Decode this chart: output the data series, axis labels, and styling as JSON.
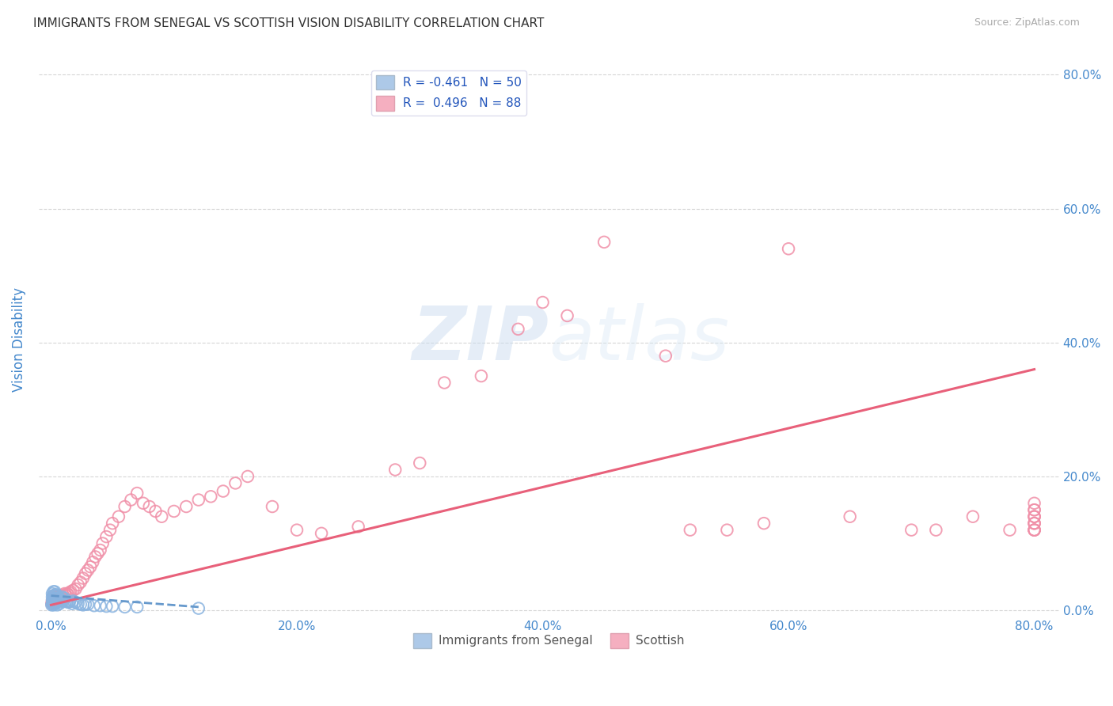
{
  "title": "IMMIGRANTS FROM SENEGAL VS SCOTTISH VISION DISABILITY CORRELATION CHART",
  "source": "Source: ZipAtlas.com",
  "ylabel": "Vision Disability",
  "x_tick_labels": [
    "0.0%",
    "20.0%",
    "40.0%",
    "60.0%",
    "80.0%"
  ],
  "x_tick_vals": [
    0.0,
    0.2,
    0.4,
    0.6,
    0.8
  ],
  "y_tick_labels": [
    "0.0%",
    "20.0%",
    "40.0%",
    "60.0%",
    "80.0%"
  ],
  "y_tick_vals": [
    0.0,
    0.2,
    0.4,
    0.6,
    0.8
  ],
  "xlim": [
    -0.01,
    0.82
  ],
  "ylim": [
    -0.01,
    0.82
  ],
  "legend_r1": "R = -0.461",
  "legend_n1": "N = 50",
  "legend_r2": "R =  0.496",
  "legend_n2": "N = 88",
  "blue_color": "#adc9e8",
  "pink_color": "#f5afc0",
  "blue_scatter_color": "#8ab4e0",
  "pink_scatter_color": "#f090a8",
  "blue_line_color": "#6699cc",
  "pink_line_color": "#e8607a",
  "title_color": "#333333",
  "axis_label_color": "#4488cc",
  "tick_color": "#4488cc",
  "grid_color": "#cccccc",
  "background_color": "#ffffff",
  "watermark_color": "#d0dff0",
  "blue_scatter_x": [
    0.0005,
    0.001,
    0.001,
    0.001,
    0.001,
    0.0015,
    0.002,
    0.002,
    0.002,
    0.002,
    0.002,
    0.003,
    0.003,
    0.003,
    0.003,
    0.004,
    0.004,
    0.004,
    0.005,
    0.005,
    0.005,
    0.005,
    0.006,
    0.006,
    0.007,
    0.007,
    0.008,
    0.009,
    0.009,
    0.01,
    0.011,
    0.012,
    0.013,
    0.014,
    0.015,
    0.017,
    0.018,
    0.02,
    0.022,
    0.024,
    0.026,
    0.028,
    0.03,
    0.035,
    0.04,
    0.045,
    0.05,
    0.06,
    0.07,
    0.12
  ],
  "blue_scatter_y": [
    0.008,
    0.01,
    0.015,
    0.02,
    0.025,
    0.012,
    0.008,
    0.012,
    0.018,
    0.022,
    0.028,
    0.01,
    0.018,
    0.023,
    0.028,
    0.012,
    0.018,
    0.024,
    0.008,
    0.013,
    0.018,
    0.022,
    0.012,
    0.018,
    0.01,
    0.018,
    0.015,
    0.014,
    0.02,
    0.014,
    0.018,
    0.014,
    0.013,
    0.012,
    0.013,
    0.01,
    0.014,
    0.012,
    0.01,
    0.009,
    0.008,
    0.009,
    0.009,
    0.007,
    0.007,
    0.006,
    0.006,
    0.005,
    0.005,
    0.003
  ],
  "pink_scatter_x": [
    0.0005,
    0.001,
    0.0015,
    0.002,
    0.002,
    0.003,
    0.003,
    0.004,
    0.005,
    0.005,
    0.006,
    0.007,
    0.008,
    0.008,
    0.009,
    0.01,
    0.011,
    0.012,
    0.013,
    0.014,
    0.015,
    0.016,
    0.018,
    0.02,
    0.022,
    0.024,
    0.026,
    0.028,
    0.03,
    0.032,
    0.034,
    0.036,
    0.038,
    0.04,
    0.042,
    0.045,
    0.048,
    0.05,
    0.055,
    0.06,
    0.065,
    0.07,
    0.075,
    0.08,
    0.085,
    0.09,
    0.1,
    0.11,
    0.12,
    0.13,
    0.14,
    0.15,
    0.16,
    0.18,
    0.2,
    0.22,
    0.25,
    0.28,
    0.3,
    0.32,
    0.35,
    0.38,
    0.4,
    0.42,
    0.45,
    0.5,
    0.52,
    0.55,
    0.58,
    0.6,
    0.65,
    0.7,
    0.72,
    0.75,
    0.78,
    0.8,
    0.8,
    0.8,
    0.8,
    0.8,
    0.8,
    0.8,
    0.8,
    0.8,
    0.8,
    0.8,
    0.8,
    0.8
  ],
  "pink_scatter_y": [
    0.01,
    0.015,
    0.012,
    0.018,
    0.022,
    0.014,
    0.02,
    0.018,
    0.015,
    0.02,
    0.018,
    0.022,
    0.018,
    0.022,
    0.02,
    0.022,
    0.025,
    0.022,
    0.025,
    0.024,
    0.026,
    0.028,
    0.03,
    0.032,
    0.038,
    0.042,
    0.048,
    0.055,
    0.06,
    0.065,
    0.072,
    0.08,
    0.085,
    0.09,
    0.1,
    0.11,
    0.12,
    0.13,
    0.14,
    0.155,
    0.165,
    0.175,
    0.16,
    0.155,
    0.148,
    0.14,
    0.148,
    0.155,
    0.165,
    0.17,
    0.178,
    0.19,
    0.2,
    0.155,
    0.12,
    0.115,
    0.125,
    0.21,
    0.22,
    0.34,
    0.35,
    0.42,
    0.46,
    0.44,
    0.55,
    0.38,
    0.12,
    0.12,
    0.13,
    0.54,
    0.14,
    0.12,
    0.12,
    0.14,
    0.12,
    0.15,
    0.12,
    0.13,
    0.14,
    0.12,
    0.13,
    0.12,
    0.14,
    0.12,
    0.13,
    0.14,
    0.15,
    0.16
  ],
  "pink_line_start_x": 0.0,
  "pink_line_start_y": 0.008,
  "pink_line_end_x": 0.8,
  "pink_line_end_y": 0.36,
  "blue_line_start_x": 0.0,
  "blue_line_start_y": 0.022,
  "blue_line_end_x": 0.12,
  "blue_line_end_y": 0.005
}
